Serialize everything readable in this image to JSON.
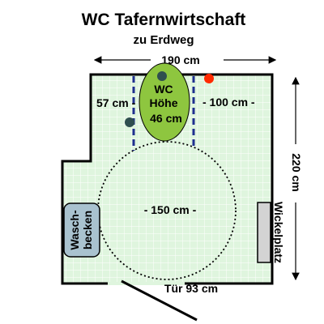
{
  "title": "WC Tafernwirtschaft",
  "subtitle": "zu Erdweg",
  "dimensions": {
    "width": "190 cm",
    "depth": "220 cm",
    "left_clearance": "57 cm -",
    "right_clearance": "- 100 cm -",
    "turning_circle": "- 150 cm -",
    "door": "Tür 93 cm"
  },
  "toilet": {
    "line1": "WC",
    "line2": "Höhe",
    "line3": "46 cm"
  },
  "sink": {
    "line1": "Wasch-",
    "line2": "becken"
  },
  "changing_table": "Wickelplatz",
  "colors": {
    "floor": "#dff5de",
    "grid": "#ffffff",
    "toilet": "#8ec63f",
    "grab_bar": "#1f2f8f",
    "flush_button": "#ff2a00",
    "dark_fixture": "#2f4f4f",
    "sink": "#a9c2cf",
    "changing_table": "#d3d3d3"
  }
}
